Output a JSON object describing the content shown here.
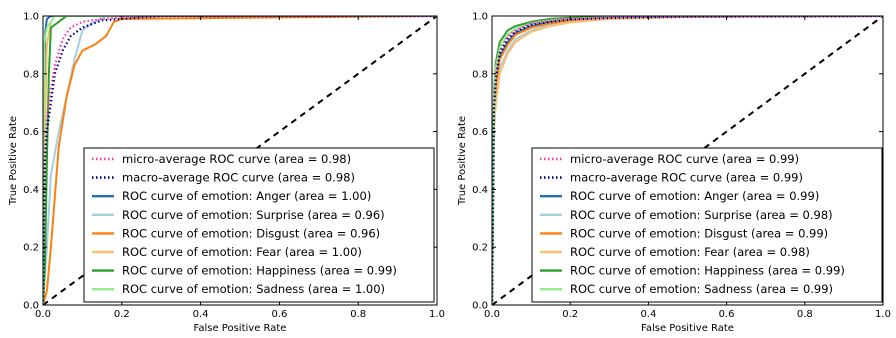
{
  "chart_data": [
    {
      "type": "line",
      "xlabel": "False Positive Rate",
      "ylabel": "True Positive Rate",
      "xlim": [
        0.0,
        1.0
      ],
      "ylim": [
        0.0,
        1.0
      ],
      "xticks": [
        "0.0",
        "0.2",
        "0.4",
        "0.6",
        "0.8",
        "1.0"
      ],
      "yticks": [
        "0.0",
        "0.2",
        "0.4",
        "0.6",
        "0.8",
        "1.0"
      ],
      "grid": false,
      "legend_position": "lower-right",
      "chance_line": {
        "x": [
          0,
          1
        ],
        "y": [
          0,
          1
        ],
        "color": "#000000",
        "style": "dashed"
      },
      "series": [
        {
          "name": "micro-average ROC curve (area = 0.98)",
          "color": "#ff33aa",
          "style": "dotted",
          "x": [
            0,
            0.005,
            0.01,
            0.02,
            0.03,
            0.05,
            0.07,
            0.1,
            0.15,
            0.2,
            0.3,
            1.0
          ],
          "y": [
            0,
            0.55,
            0.65,
            0.75,
            0.83,
            0.92,
            0.96,
            0.98,
            0.99,
            0.995,
            1.0,
            1.0
          ]
        },
        {
          "name": "macro-average ROC curve (area = 0.98)",
          "color": "#000080",
          "style": "dotted",
          "x": [
            0,
            0.005,
            0.01,
            0.02,
            0.03,
            0.05,
            0.07,
            0.1,
            0.15,
            0.2,
            0.3,
            1.0
          ],
          "y": [
            0,
            0.5,
            0.6,
            0.7,
            0.8,
            0.88,
            0.93,
            0.96,
            0.985,
            0.99,
            1.0,
            1.0
          ]
        },
        {
          "name": "ROC curve of emotion: Anger (area = 1.00)",
          "color": "#1f6fb4",
          "style": "solid",
          "x": [
            0,
            0.003,
            0.006,
            0.01,
            0.02,
            1.0
          ],
          "y": [
            0,
            0.75,
            0.95,
            0.99,
            1.0,
            1.0
          ]
        },
        {
          "name": "ROC curve of emotion: Surprise (area = 0.96)",
          "color": "#a6cee3",
          "style": "solid",
          "x": [
            0,
            0.01,
            0.02,
            0.04,
            0.06,
            0.08,
            0.1,
            0.13,
            0.16,
            1.0
          ],
          "y": [
            0,
            0.2,
            0.45,
            0.6,
            0.72,
            0.85,
            0.95,
            0.98,
            1.0,
            1.0
          ]
        },
        {
          "name": "ROC curve of emotion: Disgust (area = 0.96)",
          "color": "#ff7f0e",
          "style": "solid",
          "x": [
            0,
            0.01,
            0.02,
            0.04,
            0.06,
            0.08,
            0.1,
            0.13,
            0.16,
            0.18,
            0.2,
            1.0
          ],
          "y": [
            0,
            0.05,
            0.2,
            0.55,
            0.72,
            0.83,
            0.88,
            0.9,
            0.93,
            0.98,
            0.99,
            1.0
          ]
        },
        {
          "name": "ROC curve of emotion: Fear  (area = 1.00)",
          "color": "#fdbf6f",
          "style": "solid",
          "x": [
            0,
            0.005,
            0.01,
            0.02,
            0.03,
            1.0
          ],
          "y": [
            0,
            0.6,
            0.9,
            0.98,
            1.0,
            1.0
          ]
        },
        {
          "name": "ROC curve of emotion: Happiness (area = 0.99)",
          "color": "#2ca02c",
          "style": "solid",
          "x": [
            0,
            0.005,
            0.01,
            0.015,
            0.02,
            0.04,
            0.06,
            1.0
          ],
          "y": [
            0,
            0.15,
            0.5,
            0.8,
            0.96,
            0.98,
            1.0,
            1.0
          ]
        },
        {
          "name": "ROC curve of emotion: Sadness (area = 1.00)",
          "color": "#90ee90",
          "style": "solid",
          "x": [
            0,
            0.003,
            0.01,
            0.02,
            0.03,
            1.0
          ],
          "y": [
            0,
            0.9,
            0.96,
            0.98,
            1.0,
            1.0
          ]
        }
      ]
    },
    {
      "type": "line",
      "xlabel": "False Positive Rate",
      "ylabel": "True Positive Rate",
      "xlim": [
        0.0,
        1.0
      ],
      "ylim": [
        0.0,
        1.0
      ],
      "xticks": [
        "0.0",
        "0.2",
        "0.4",
        "0.6",
        "0.8",
        "1.0"
      ],
      "yticks": [
        "0.0",
        "0.2",
        "0.4",
        "0.6",
        "0.8",
        "1.0"
      ],
      "grid": false,
      "legend_position": "lower-right",
      "chance_line": {
        "x": [
          0,
          1
        ],
        "y": [
          0,
          1
        ],
        "color": "#000000",
        "style": "dashed"
      },
      "series": [
        {
          "name": "micro-average ROC curve (area = 0.99)",
          "color": "#ff33aa",
          "style": "dotted",
          "x": [
            0,
            0.005,
            0.01,
            0.02,
            0.04,
            0.06,
            0.1,
            0.15,
            0.2,
            0.3,
            0.5,
            1.0
          ],
          "y": [
            0,
            0.7,
            0.8,
            0.88,
            0.93,
            0.95,
            0.975,
            0.985,
            0.99,
            0.995,
            0.998,
            1.0
          ]
        },
        {
          "name": "macro-average ROC curve (area = 0.99)",
          "color": "#000080",
          "style": "dotted",
          "x": [
            0,
            0.005,
            0.01,
            0.02,
            0.04,
            0.06,
            0.1,
            0.15,
            0.2,
            0.3,
            0.5,
            1.0
          ],
          "y": [
            0,
            0.68,
            0.78,
            0.87,
            0.92,
            0.945,
            0.97,
            0.98,
            0.988,
            0.993,
            0.998,
            1.0
          ]
        },
        {
          "name": "ROC curve of emotion: Anger (area = 0.99)",
          "color": "#1f6fb4",
          "style": "solid",
          "x": [
            0,
            0.005,
            0.01,
            0.02,
            0.04,
            0.06,
            0.1,
            0.15,
            0.2,
            0.3,
            0.5,
            1.0
          ],
          "y": [
            0,
            0.68,
            0.78,
            0.86,
            0.91,
            0.94,
            0.965,
            0.98,
            0.985,
            0.993,
            0.998,
            1.0
          ]
        },
        {
          "name": "ROC curve of emotion: Surprise (area = 0.98)",
          "color": "#a6cee3",
          "style": "solid",
          "x": [
            0,
            0.005,
            0.01,
            0.02,
            0.04,
            0.06,
            0.1,
            0.15,
            0.2,
            0.3,
            0.5,
            1.0
          ],
          "y": [
            0,
            0.62,
            0.72,
            0.82,
            0.88,
            0.92,
            0.95,
            0.97,
            0.98,
            0.99,
            0.997,
            1.0
          ]
        },
        {
          "name": "ROC curve of emotion: Disgust (area = 0.99)",
          "color": "#ff7f0e",
          "style": "solid",
          "x": [
            0,
            0.005,
            0.01,
            0.02,
            0.04,
            0.06,
            0.1,
            0.15,
            0.2,
            0.3,
            0.5,
            1.0
          ],
          "y": [
            0,
            0.66,
            0.76,
            0.85,
            0.9,
            0.935,
            0.96,
            0.975,
            0.985,
            0.992,
            0.998,
            1.0
          ]
        },
        {
          "name": "ROC curve of emotion: Fear  (area = 0.98)",
          "color": "#fdbf6f",
          "style": "solid",
          "x": [
            0,
            0.005,
            0.01,
            0.02,
            0.04,
            0.06,
            0.1,
            0.15,
            0.2,
            0.3,
            0.5,
            1.0
          ],
          "y": [
            0,
            0.6,
            0.7,
            0.8,
            0.87,
            0.91,
            0.945,
            0.965,
            0.978,
            0.99,
            0.997,
            1.0
          ]
        },
        {
          "name": "ROC curve of emotion: Happiness (area = 0.99)",
          "color": "#2ca02c",
          "style": "solid",
          "x": [
            0,
            0.005,
            0.01,
            0.02,
            0.04,
            0.06,
            0.1,
            0.15,
            0.2,
            0.3,
            0.5,
            1.0
          ],
          "y": [
            0,
            0.74,
            0.84,
            0.91,
            0.95,
            0.965,
            0.98,
            0.99,
            0.994,
            0.997,
            0.999,
            1.0
          ]
        },
        {
          "name": "ROC curve of emotion: Sadness (area = 0.99)",
          "color": "#90ee90",
          "style": "solid",
          "x": [
            0,
            0.005,
            0.01,
            0.02,
            0.04,
            0.06,
            0.1,
            0.15,
            0.2,
            0.3,
            0.5,
            1.0
          ],
          "y": [
            0,
            0.72,
            0.82,
            0.89,
            0.935,
            0.955,
            0.975,
            0.985,
            0.99,
            0.995,
            0.999,
            1.0
          ]
        }
      ]
    }
  ]
}
